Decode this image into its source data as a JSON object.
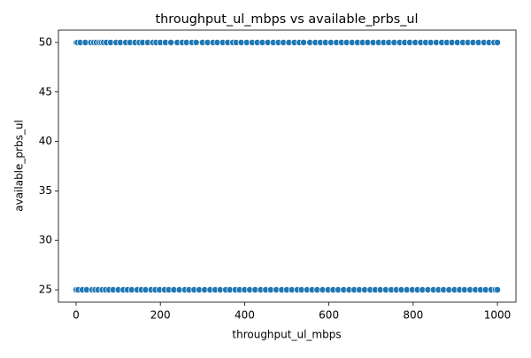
{
  "chart_data": {
    "type": "scatter",
    "title": "throughput_ul_mbps vs available_prbs_ul",
    "xlabel": "throughput_ul_mbps",
    "ylabel": "available_prbs_ul",
    "color": "#1f77b4",
    "x": [
      0,
      3,
      10,
      22,
      35,
      42,
      48,
      55,
      60,
      65,
      72,
      82,
      95,
      105,
      118,
      128,
      140,
      150,
      158,
      170,
      182,
      190,
      200,
      212,
      225,
      240,
      252,
      262,
      275,
      285,
      300,
      312,
      325,
      335,
      348,
      360,
      372,
      380,
      392,
      405,
      418,
      430,
      442,
      455,
      468,
      480,
      492,
      505,
      518,
      530,
      540,
      555,
      568,
      580,
      592,
      605,
      618,
      630,
      642,
      655,
      668,
      680,
      692,
      705,
      718,
      730,
      742,
      755,
      768,
      780,
      792,
      805,
      818,
      830,
      842,
      855,
      868,
      880,
      892,
      905,
      918,
      930,
      942,
      955,
      968,
      980,
      992,
      1000,
      0,
      5,
      15,
      25,
      38,
      45,
      52,
      62,
      70,
      78,
      88,
      100,
      112,
      122,
      132,
      145,
      155,
      165,
      178,
      188,
      198,
      210,
      220,
      232,
      245,
      258,
      268,
      280,
      292,
      305,
      318,
      330,
      342,
      355,
      365,
      378,
      388,
      400,
      412,
      425,
      438,
      450,
      462,
      475,
      488,
      500,
      512,
      525,
      535,
      548,
      560,
      572,
      585,
      598,
      610,
      622,
      635,
      648,
      660,
      672,
      685,
      698,
      710,
      722,
      735,
      748,
      760,
      772,
      785,
      798,
      810,
      822,
      835,
      848,
      860,
      872,
      885,
      898,
      910,
      922,
      935,
      948,
      960,
      972,
      985,
      995,
      1000
    ],
    "values": [
      50,
      50,
      50,
      50,
      50,
      50,
      50,
      50,
      50,
      50,
      50,
      50,
      50,
      50,
      50,
      50,
      50,
      50,
      50,
      50,
      50,
      50,
      50,
      50,
      50,
      50,
      50,
      50,
      50,
      50,
      50,
      50,
      50,
      50,
      50,
      50,
      50,
      50,
      50,
      50,
      50,
      50,
      50,
      50,
      50,
      50,
      50,
      50,
      50,
      50,
      50,
      50,
      50,
      50,
      50,
      50,
      50,
      50,
      50,
      50,
      50,
      50,
      50,
      50,
      50,
      50,
      50,
      50,
      50,
      50,
      50,
      50,
      50,
      50,
      50,
      50,
      50,
      50,
      50,
      50,
      50,
      50,
      50,
      50,
      50,
      50,
      50,
      50,
      25,
      25,
      25,
      25,
      25,
      25,
      25,
      25,
      25,
      25,
      25,
      25,
      25,
      25,
      25,
      25,
      25,
      25,
      25,
      25,
      25,
      25,
      25,
      25,
      25,
      25,
      25,
      25,
      25,
      25,
      25,
      25,
      25,
      25,
      25,
      25,
      25,
      25,
      25,
      25,
      25,
      25,
      25,
      25,
      25,
      25,
      25,
      25,
      25,
      25,
      25,
      25,
      25,
      25,
      25,
      25,
      25,
      25,
      25,
      25,
      25,
      25,
      25,
      25,
      25,
      25,
      25,
      25,
      25,
      25,
      25,
      25,
      25,
      25,
      25,
      25,
      25,
      25,
      25,
      25,
      25,
      25,
      25,
      25,
      25,
      25,
      25
    ],
    "xlim": [
      -42,
      1044
    ],
    "xticks": [
      0,
      200,
      400,
      600,
      800,
      1000
    ],
    "ylim": [
      23.75,
      51.25
    ],
    "yticks": [
      25,
      30,
      35,
      40,
      45,
      50
    ]
  }
}
